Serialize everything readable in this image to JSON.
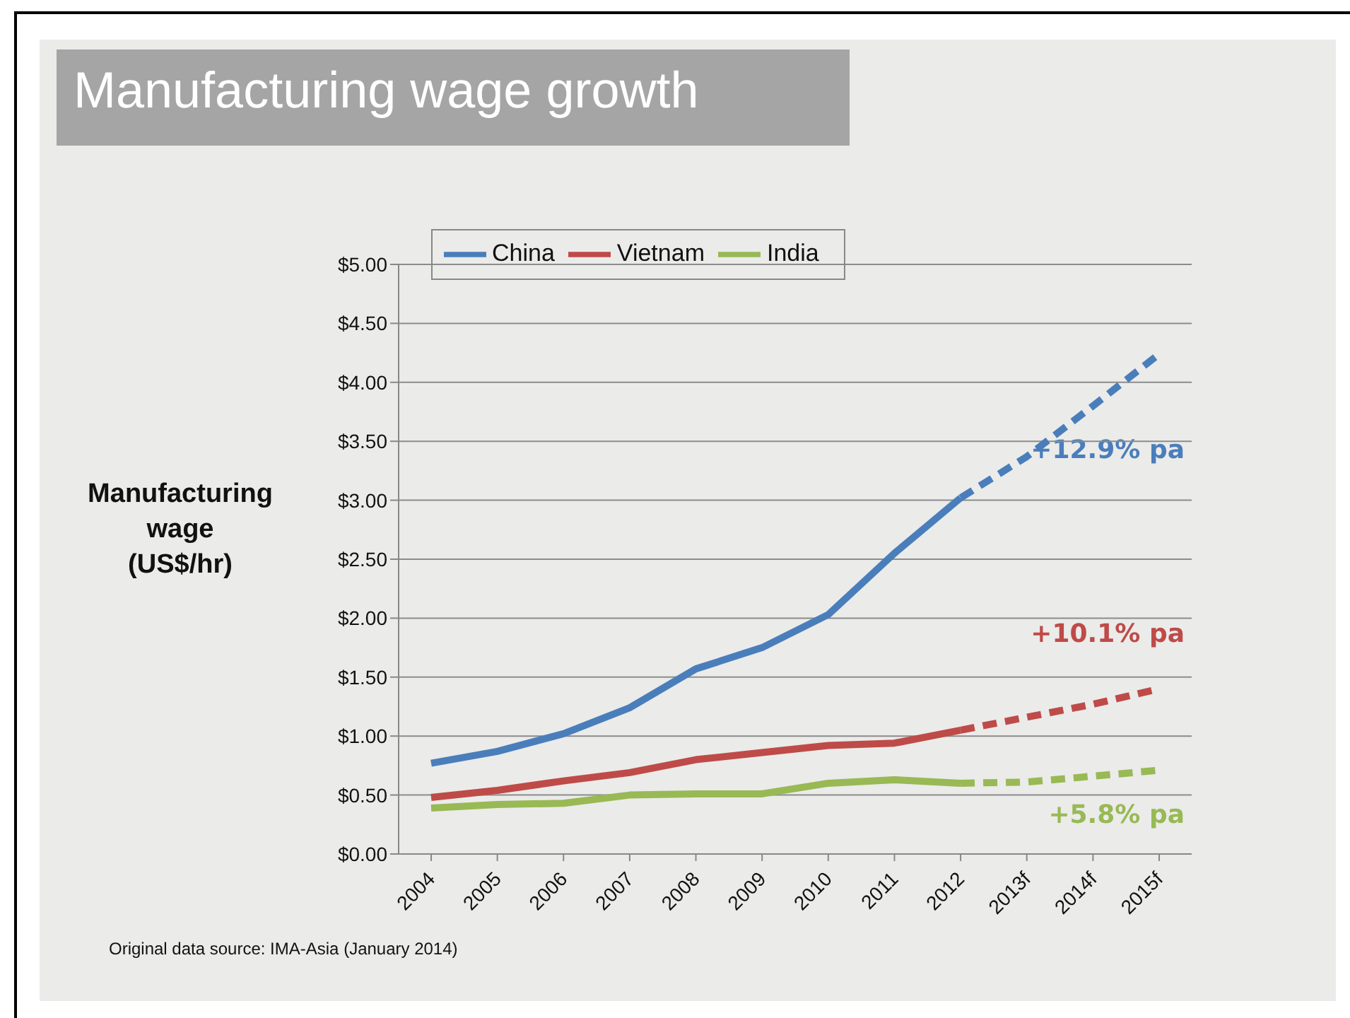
{
  "chart_data": {
    "type": "line",
    "title": "Manufacturing wage growth",
    "ylabel": "Manufacturing\nwage\n(US$/hr)",
    "categories": [
      "2004",
      "2005",
      "2006",
      "2007",
      "2008",
      "2009",
      "2010",
      "2011",
      "2012",
      "2013f",
      "2014f",
      "2015f"
    ],
    "series": [
      {
        "name": "China",
        "color": "#4a7ebb",
        "values": [
          0.77,
          0.87,
          1.02,
          1.24,
          1.57,
          1.75,
          2.03,
          2.55,
          3.02,
          null,
          null,
          null
        ]
      },
      {
        "name": "Vietnam",
        "color": "#be4b48",
        "values": [
          0.48,
          0.54,
          0.62,
          0.69,
          0.8,
          0.86,
          0.92,
          0.94,
          1.05,
          null,
          null,
          null
        ]
      },
      {
        "name": "India",
        "color": "#98b954",
        "values": [
          0.39,
          0.42,
          0.43,
          0.5,
          0.51,
          0.51,
          0.6,
          0.63,
          0.6,
          null,
          null,
          null
        ]
      },
      {
        "color": "#4a7ebb",
        "line_style": "dashed",
        "values": [
          null,
          null,
          null,
          null,
          null,
          null,
          null,
          null,
          3.02,
          3.37,
          3.8,
          4.24
        ]
      },
      {
        "color": "#be4b48",
        "line_style": "dashed",
        "values": [
          null,
          null,
          null,
          null,
          null,
          null,
          null,
          null,
          1.05,
          1.16,
          1.27,
          1.4
        ]
      },
      {
        "color": "#98b954",
        "line_style": "dashed",
        "values": [
          null,
          null,
          null,
          null,
          null,
          null,
          null,
          null,
          0.6,
          0.61,
          0.66,
          0.71
        ]
      }
    ],
    "ylim": [
      0,
      5
    ],
    "yticks": [
      {
        "value": 0,
        "label": "$0.00"
      },
      {
        "value": 0.5,
        "label": "$0.50"
      },
      {
        "value": 1,
        "label": "$1.00"
      },
      {
        "value": 1.5,
        "label": "$1.50"
      },
      {
        "value": 2,
        "label": "$2.00"
      },
      {
        "value": 2.5,
        "label": "$2.50"
      },
      {
        "value": 3,
        "label": "$3.00"
      },
      {
        "value": 3.5,
        "label": "$3.50"
      },
      {
        "value": 4,
        "label": "$4.00"
      },
      {
        "value": 4.5,
        "label": "$4.50"
      },
      {
        "value": 5,
        "label": "$5.00"
      }
    ],
    "grid": "y",
    "legend": "top",
    "marker": "none",
    "line_style": "solid",
    "annotations": [
      "+12.9% pa",
      "+10.1% pa",
      "+5.8% pa",
      "Original data source: IMA-Asia (January 2014)"
    ]
  }
}
